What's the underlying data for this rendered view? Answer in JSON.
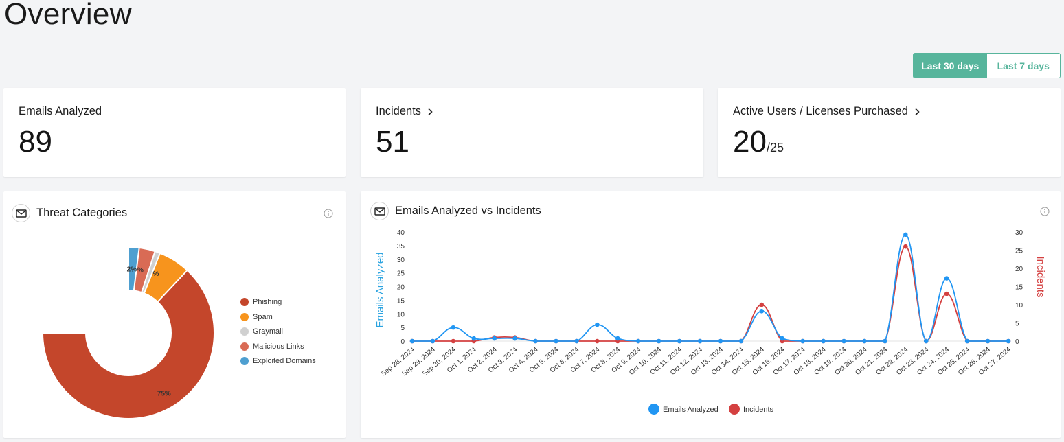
{
  "page": {
    "title": "Overview"
  },
  "range": {
    "active": "Last 30 days",
    "inactive": "Last 7 days"
  },
  "stats": {
    "emails": {
      "label": "Emails Analyzed",
      "value": "89"
    },
    "incidents": {
      "label": "Incidents",
      "value": "51"
    },
    "users": {
      "label": "Active Users / Licenses Purchased",
      "value": "20",
      "sub": "/25"
    }
  },
  "threat": {
    "title": "Threat Categories",
    "legend": [
      {
        "label": "Phishing",
        "color": "#c4462b"
      },
      {
        "label": "Spam",
        "color": "#f7941d"
      },
      {
        "label": "Graymail",
        "color": "#d0d0d0"
      },
      {
        "label": "Malicious Links",
        "color": "#d96b55"
      },
      {
        "label": "Exploited Domains",
        "color": "#4e9fd0"
      }
    ]
  },
  "trend": {
    "title": "Emails Analyzed vs Incidents",
    "y_left_label": "Emails Analyzed",
    "y_right_label": "Incidents",
    "legend": [
      {
        "label": "Emails Analyzed",
        "color": "#2196f3"
      },
      {
        "label": "Incidents",
        "color": "#d44040"
      }
    ]
  },
  "chart_data": [
    {
      "type": "pie",
      "title": "Threat Categories",
      "categories": [
        "Phishing",
        "Spam",
        "Graymail",
        "Malicious Links",
        "Exploited Domains"
      ],
      "values": [
        75,
        12,
        6,
        5,
        2
      ],
      "labels": [
        "75%",
        "12%",
        "6%",
        "5%",
        "2%"
      ],
      "colors": [
        "#c4462b",
        "#f7941d",
        "#d0d0d0",
        "#d96b55",
        "#4e9fd0"
      ],
      "legend": "right"
    },
    {
      "type": "line",
      "title": "Emails Analyzed vs Incidents",
      "x": [
        "Sep 28, 2024",
        "Sep 29, 2024",
        "Sep 30, 2024",
        "Oct 1, 2024",
        "Oct 2, 2024",
        "Oct 3, 2024",
        "Oct 4, 2024",
        "Oct 5, 2024",
        "Oct 6, 2024",
        "Oct 7, 2024",
        "Oct 8, 2024",
        "Oct 9, 2024",
        "Oct 10, 2024",
        "Oct 11, 2024",
        "Oct 12, 2024",
        "Oct 13, 2024",
        "Oct 14, 2024",
        "Oct 15, 2024",
        "Oct 16, 2024",
        "Oct 17, 2024",
        "Oct 18, 2024",
        "Oct 19, 2024",
        "Oct 20, 2024",
        "Oct 21, 2024",
        "Oct 22, 2024",
        "Oct 23, 2024",
        "Oct 24, 2024",
        "Oct 25, 2024",
        "Oct 26, 2024",
        "Oct 27, 2024"
      ],
      "series": [
        {
          "name": "Emails Analyzed",
          "axis": "left",
          "color": "#2196f3",
          "values": [
            0,
            0,
            5,
            1,
            1,
            1,
            0,
            0,
            0,
            6,
            1,
            0,
            0,
            0,
            0,
            0,
            0,
            11,
            1,
            0,
            0,
            0,
            0,
            0,
            39,
            0,
            23,
            0,
            0,
            0
          ]
        },
        {
          "name": "Incidents",
          "axis": "right",
          "color": "#d44040",
          "values": [
            0,
            0,
            0,
            0,
            1,
            1,
            0,
            0,
            0,
            0,
            0,
            0,
            0,
            0,
            0,
            0,
            0,
            10,
            0,
            0,
            0,
            0,
            0,
            0,
            26,
            0,
            13,
            0,
            0,
            0
          ]
        }
      ],
      "yleft": {
        "label": "Emails Analyzed",
        "ticks": [
          0,
          5,
          10,
          15,
          20,
          25,
          30,
          35,
          40
        ],
        "ylim": [
          0,
          40
        ]
      },
      "yright": {
        "label": "Incidents",
        "ticks": [
          0,
          5,
          10,
          15,
          20,
          25,
          30
        ],
        "ylim": [
          0,
          30
        ]
      },
      "legend": "bottom"
    }
  ]
}
